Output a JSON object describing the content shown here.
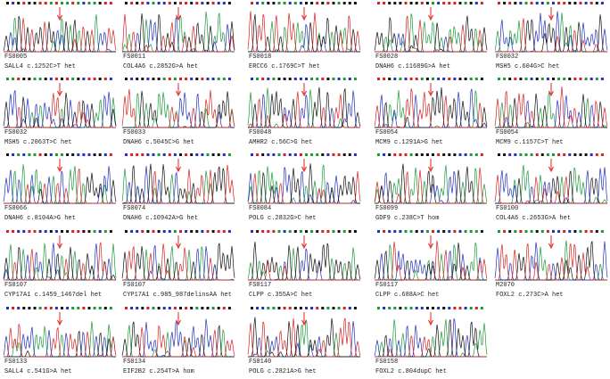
{
  "panels": [
    {
      "sample": "FS0005",
      "caption": "SALL4 c.1252C>T het"
    },
    {
      "sample": "FS0011",
      "caption": "COL4A6 c.2852G>A het"
    },
    {
      "sample": "FS0018",
      "caption": "ERCC6 c.1769C>T het"
    },
    {
      "sample": "FS0028",
      "caption": "DNAH6 c.11689G>A het"
    },
    {
      "sample": "FS0032",
      "caption": "MSH5 c.604G>C het"
    },
    {
      "sample": "FS0032",
      "caption": "MSH5 c.2063T>C het"
    },
    {
      "sample": "FS0033",
      "caption": "DNAH6 c.5045C>G het"
    },
    {
      "sample": "FS0048",
      "caption": "AMHR2 c.56C>G het"
    },
    {
      "sample": "FS0054",
      "caption": "MCM9 c.1291A>G het"
    },
    {
      "sample": "FS0054",
      "caption": "MCM9 c.1157C>T het"
    },
    {
      "sample": "FS0066",
      "caption": "DNAH6 c.8104A>G het"
    },
    {
      "sample": "FS0074",
      "caption": "DNAH6 c.10942A>G het"
    },
    {
      "sample": "FS0084",
      "caption": "POLG c.2832G>C het"
    },
    {
      "sample": "FS0099",
      "caption": "GDF9 c.238C>T hom"
    },
    {
      "sample": "FS0100",
      "caption": "COL4A6 c.2653G>A het"
    },
    {
      "sample": "FS0107",
      "caption": "CYP17A1 c.1459_1467del het"
    },
    {
      "sample": "FS0107",
      "caption": "CYP17A1 c.985_987delinsAA het"
    },
    {
      "sample": "FS0117",
      "caption": "CLPP c.355A>C het"
    },
    {
      "sample": "FS0117",
      "caption": "CLPP c.688A>C het"
    },
    {
      "sample": "M2070",
      "caption": "FOXL2 c.273C>A het"
    },
    {
      "sample": "FS0133",
      "caption": "SALL4 c.541G>A het"
    },
    {
      "sample": "FS0134",
      "caption": "EIF2B2 c.254T>A hom"
    },
    {
      "sample": "FS0140",
      "caption": "POLG c.2821A>G het"
    },
    {
      "sample": "FS0158",
      "caption": "FOXL2 c.804dupC het"
    }
  ]
}
